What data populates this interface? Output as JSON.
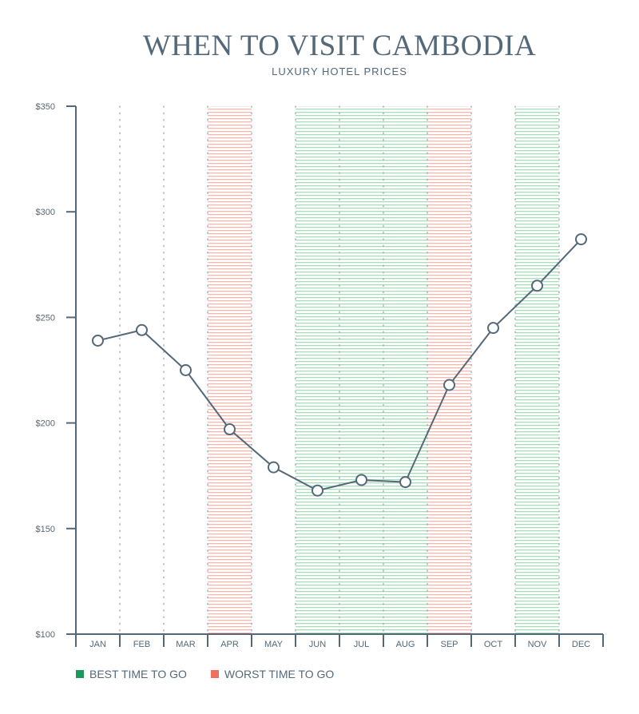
{
  "title": "WHEN TO VISIT CAMBODIA",
  "subtitle": "LUXURY HOTEL PRICES",
  "legend": {
    "best_label": "BEST TIME TO GO",
    "worst_label": "WORST TIME TO GO",
    "best_color": "#1a9a5a",
    "worst_color": "#f07060"
  },
  "colors": {
    "line": "#536878",
    "axis": "#536878",
    "best_stripe": "#a9dcb8",
    "worst_stripe": "#f6b8ac"
  },
  "chart_data": {
    "type": "line",
    "title": "WHEN TO VISIT CAMBODIA",
    "subtitle": "LUXURY HOTEL PRICES",
    "categories": [
      "JAN",
      "FEB",
      "MAR",
      "APR",
      "MAY",
      "JUN",
      "JUL",
      "AUG",
      "SEP",
      "OCT",
      "NOV",
      "DEC"
    ],
    "series": [
      {
        "values": [
          239,
          244,
          225,
          197,
          179,
          168,
          173,
          172,
          218,
          245,
          265,
          287
        ]
      }
    ],
    "ylim": [
      100,
      350
    ],
    "yticks": [
      100,
      150,
      200,
      250,
      300,
      350
    ],
    "ytick_labels": [
      "$100",
      "$150",
      "$200",
      "$250",
      "$300",
      "$350"
    ],
    "best_months": [
      "JUN",
      "JUL",
      "AUG",
      "NOV"
    ],
    "worst_months": [
      "APR",
      "SEP"
    ],
    "grid": "vertical dotted"
  }
}
